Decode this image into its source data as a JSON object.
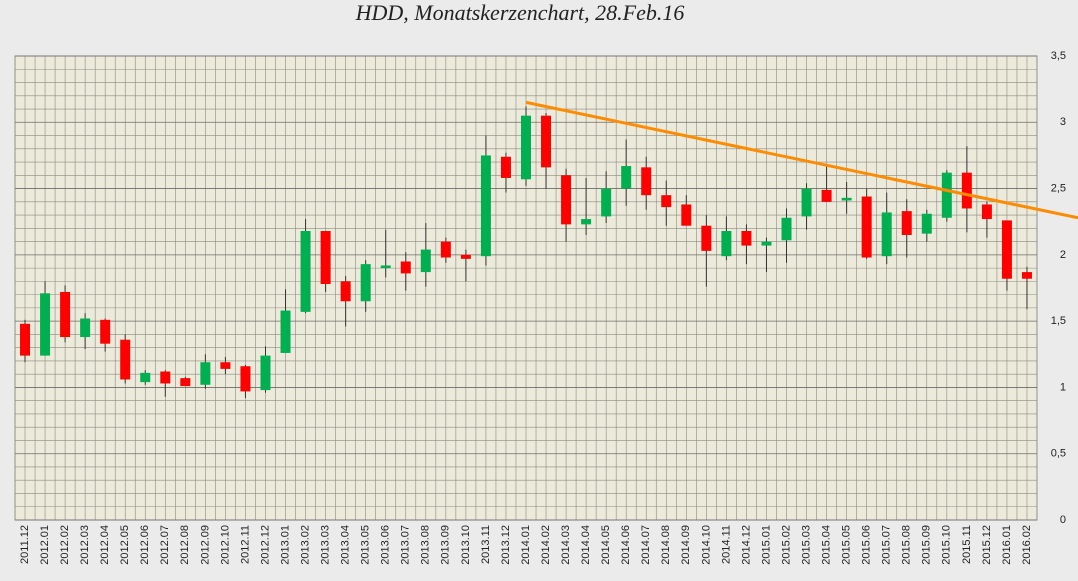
{
  "chart_data": {
    "type": "candlestick",
    "title": "HDD, Monatskerzenchart, 28.Feb.16",
    "categories": [
      "2011.12",
      "2012.01",
      "2012.02",
      "2012.03",
      "2012.04",
      "2012.05",
      "2012.06",
      "2012.07",
      "2012.08",
      "2012.09",
      "2012.10",
      "2012.11",
      "2012.12",
      "2013.01",
      "2013.02",
      "2013.03",
      "2013.04",
      "2013.05",
      "2013.06",
      "2013.07",
      "2013.08",
      "2013.09",
      "2013.10",
      "2013.11",
      "2013.12",
      "2014.01",
      "2014.02",
      "2014.03",
      "2014.04",
      "2014.05",
      "2014.06",
      "2014.07",
      "2014.08",
      "2014.09",
      "2014.10",
      "2014.11",
      "2014.12",
      "2015.01",
      "2015.02",
      "2015.03",
      "2015.04",
      "2015.05",
      "2015.06",
      "2015.07",
      "2015.08",
      "2015.09",
      "2015.10",
      "2015.11",
      "2015.12",
      "2016.01",
      "2016.02"
    ],
    "open": [
      1.48,
      1.24,
      1.72,
      1.38,
      1.51,
      1.36,
      1.04,
      1.12,
      1.07,
      1.02,
      1.19,
      1.16,
      0.98,
      1.26,
      1.57,
      2.18,
      1.8,
      1.65,
      1.9,
      1.95,
      1.87,
      2.1,
      2.0,
      1.99,
      2.74,
      2.57,
      3.05,
      2.6,
      2.23,
      2.29,
      2.5,
      2.66,
      2.45,
      2.38,
      2.22,
      1.99,
      2.18,
      2.07,
      2.11,
      2.29,
      2.49,
      2.41,
      2.44,
      1.99,
      2.33,
      2.16,
      2.28,
      2.62,
      2.38,
      2.26,
      1.87
    ],
    "high": [
      1.51,
      1.8,
      1.77,
      1.56,
      1.52,
      1.4,
      1.13,
      1.13,
      1.08,
      1.25,
      1.23,
      1.17,
      1.31,
      1.74,
      2.27,
      2.18,
      1.84,
      1.96,
      2.19,
      2.02,
      2.24,
      2.13,
      2.04,
      2.9,
      2.77,
      3.12,
      3.07,
      2.65,
      2.58,
      2.63,
      2.87,
      2.74,
      2.56,
      2.45,
      2.3,
      2.29,
      2.23,
      2.13,
      2.35,
      2.54,
      2.68,
      2.55,
      2.5,
      2.47,
      2.42,
      2.34,
      2.64,
      2.82,
      2.4,
      2.26,
      1.91
    ],
    "low": [
      1.19,
      1.24,
      1.34,
      1.29,
      1.27,
      1.03,
      1.02,
      0.93,
      1.01,
      0.99,
      1.1,
      0.92,
      0.96,
      1.26,
      1.56,
      1.72,
      1.46,
      1.57,
      1.83,
      1.73,
      1.76,
      1.94,
      1.8,
      1.92,
      2.47,
      2.52,
      2.5,
      2.1,
      2.15,
      2.24,
      2.37,
      2.34,
      2.22,
      2.22,
      1.76,
      1.96,
      1.93,
      1.87,
      1.94,
      2.19,
      2.4,
      2.31,
      1.97,
      1.93,
      1.98,
      2.1,
      2.25,
      2.17,
      2.13,
      1.73,
      1.59
    ],
    "close": [
      1.24,
      1.71,
      1.38,
      1.52,
      1.33,
      1.06,
      1.11,
      1.03,
      1.01,
      1.19,
      1.14,
      0.97,
      1.24,
      1.58,
      2.18,
      1.78,
      1.65,
      1.93,
      1.92,
      1.86,
      2.04,
      1.98,
      1.97,
      2.75,
      2.58,
      3.05,
      2.66,
      2.23,
      2.27,
      2.5,
      2.67,
      2.45,
      2.36,
      2.22,
      2.03,
      2.18,
      2.07,
      2.1,
      2.28,
      2.5,
      2.4,
      2.43,
      1.98,
      2.32,
      2.15,
      2.31,
      2.62,
      2.35,
      2.27,
      1.82,
      1.82
    ],
    "up_color": "#00b050",
    "down_color": "#ff0000",
    "ylim": [
      0,
      3.5
    ],
    "yticks": [
      0,
      {
        "value": 0.5,
        "label": "0,5"
      },
      1,
      {
        "value": 1.5,
        "label": "1,5"
      },
      2,
      {
        "value": 2.5,
        "label": "2,5"
      },
      3,
      {
        "value": 3.5,
        "label": "3,5"
      }
    ],
    "minor_yticks": [
      0.1,
      0.2,
      0.3,
      0.4,
      0.6,
      0.7,
      0.8,
      0.9,
      1.1,
      1.2,
      1.3,
      1.4,
      1.6,
      1.7,
      1.8,
      1.9,
      2.1,
      2.2,
      2.3,
      2.4,
      2.6,
      2.7,
      2.8,
      2.9,
      3.1,
      3.2,
      3.3,
      3.4
    ],
    "grid": true,
    "trend_line": {
      "color": "#ff8c00",
      "start_category": 25,
      "end_category": 50,
      "start": 3.15,
      "end": 2.36
    }
  }
}
